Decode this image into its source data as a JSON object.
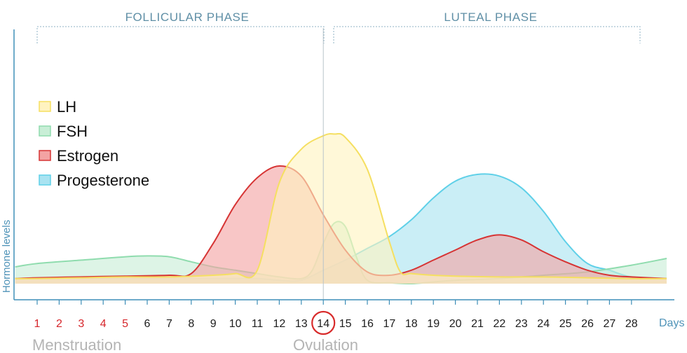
{
  "chart_data": {
    "type": "area",
    "title": "",
    "xlabel": "Days",
    "ylabel": "Hormone levels",
    "xlim": [
      1,
      28
    ],
    "ylim": [
      0,
      100
    ],
    "grid": false,
    "legend_position": "left",
    "x_ticks": [
      1,
      2,
      3,
      4,
      5,
      6,
      7,
      8,
      9,
      10,
      11,
      12,
      13,
      14,
      15,
      16,
      17,
      18,
      19,
      20,
      21,
      22,
      23,
      24,
      25,
      26,
      27,
      28
    ],
    "menstruation_days": [
      1,
      2,
      3,
      4,
      5
    ],
    "highlighted_day": 14,
    "phases": [
      {
        "label": "FOLLICULAR PHASE",
        "start_day": 1,
        "end_day": 14
      },
      {
        "label": "LUTEAL PHASE",
        "start_day": 14,
        "end_day": 28
      }
    ],
    "annotations": {
      "menstruation": "Menstruation",
      "ovulation": "Ovulation"
    },
    "series": [
      {
        "name": "Progesterone",
        "color": "#a9e3f1",
        "stroke": "#5fd0e8",
        "x": [
          0,
          1,
          3,
          5,
          7,
          9,
          11,
          12,
          13,
          14,
          15,
          16,
          17,
          18,
          19,
          20,
          21,
          22,
          23,
          24,
          25,
          26,
          27,
          28,
          29.6
        ],
        "values": [
          3,
          3,
          3,
          3,
          3,
          3,
          3,
          2,
          2,
          8,
          14,
          21,
          28,
          38,
          51,
          61,
          65,
          64,
          57,
          43,
          25,
          12,
          8,
          4,
          3
        ]
      },
      {
        "name": "FSH",
        "color": "#c8eed6",
        "stroke": "#8fdcae",
        "x": [
          0,
          1,
          3,
          5,
          6,
          7,
          8,
          9,
          10,
          11,
          12,
          13,
          13.5,
          14,
          14.5,
          15,
          15.5,
          16,
          17,
          18,
          19,
          20,
          22,
          24,
          26,
          28,
          29.6
        ],
        "values": [
          10,
          12,
          14,
          16,
          16.5,
          16,
          13,
          10,
          8,
          6,
          4,
          3,
          8,
          24,
          36,
          34,
          16,
          2,
          0.5,
          0,
          1,
          2,
          3,
          5,
          7,
          11,
          15
        ]
      },
      {
        "name": "Estrogen",
        "color": "#f3a3a3",
        "stroke": "#d63434",
        "x": [
          0,
          1,
          3,
          5,
          7,
          8,
          9,
          10,
          11,
          12,
          13,
          14,
          15,
          16,
          17,
          18,
          19,
          20,
          21,
          22,
          23,
          24,
          25,
          26,
          27,
          28,
          29.6
        ],
        "values": [
          3,
          3.5,
          4,
          4.5,
          5,
          6,
          24,
          47,
          63,
          70,
          64,
          41,
          20,
          7,
          5,
          8,
          14,
          20,
          26,
          29,
          26,
          19,
          13,
          8,
          5,
          4,
          3
        ]
      },
      {
        "name": "LH",
        "color": "#fff3c0",
        "stroke": "#f5df61",
        "x": [
          0,
          1,
          3,
          5,
          7,
          9,
          10,
          11,
          12,
          13,
          14,
          14.5,
          15,
          16,
          17,
          17.5,
          18,
          19,
          20,
          22,
          24,
          26,
          28,
          29.6
        ],
        "values": [
          3,
          3,
          3.5,
          4,
          4,
          5,
          6,
          8,
          60,
          80,
          88,
          89,
          87,
          68,
          25,
          7,
          6,
          5,
          4.5,
          4,
          4,
          3.5,
          3,
          3
        ]
      }
    ],
    "legend": [
      "LH",
      "FSH",
      "Estrogen",
      "Progesterone"
    ]
  }
}
